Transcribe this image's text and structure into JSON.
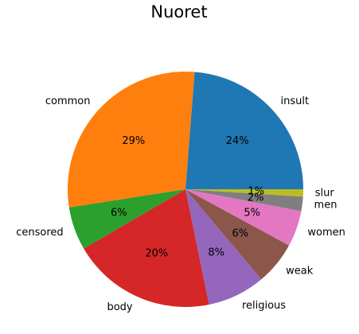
{
  "chart_data": {
    "type": "pie",
    "title": "Nuoret",
    "labels": [
      "insult",
      "common",
      "censored",
      "body",
      "religious",
      "weak",
      "women",
      "men",
      "slur"
    ],
    "values": [
      24,
      29,
      6,
      20,
      8,
      6,
      5,
      2,
      1
    ],
    "percent_labels": [
      "24%",
      "29%",
      "6%",
      "20%",
      "8%",
      "6%",
      "5%",
      "2%",
      "1%"
    ],
    "colors": [
      "#1f77b4",
      "#ff7f0e",
      "#2ca02c",
      "#d62728",
      "#9467bd",
      "#8c564b",
      "#e377c2",
      "#7f7f7f",
      "#bcbd22"
    ],
    "start_angle_deg": 0,
    "direction": "counterclockwise",
    "legend": "none"
  }
}
